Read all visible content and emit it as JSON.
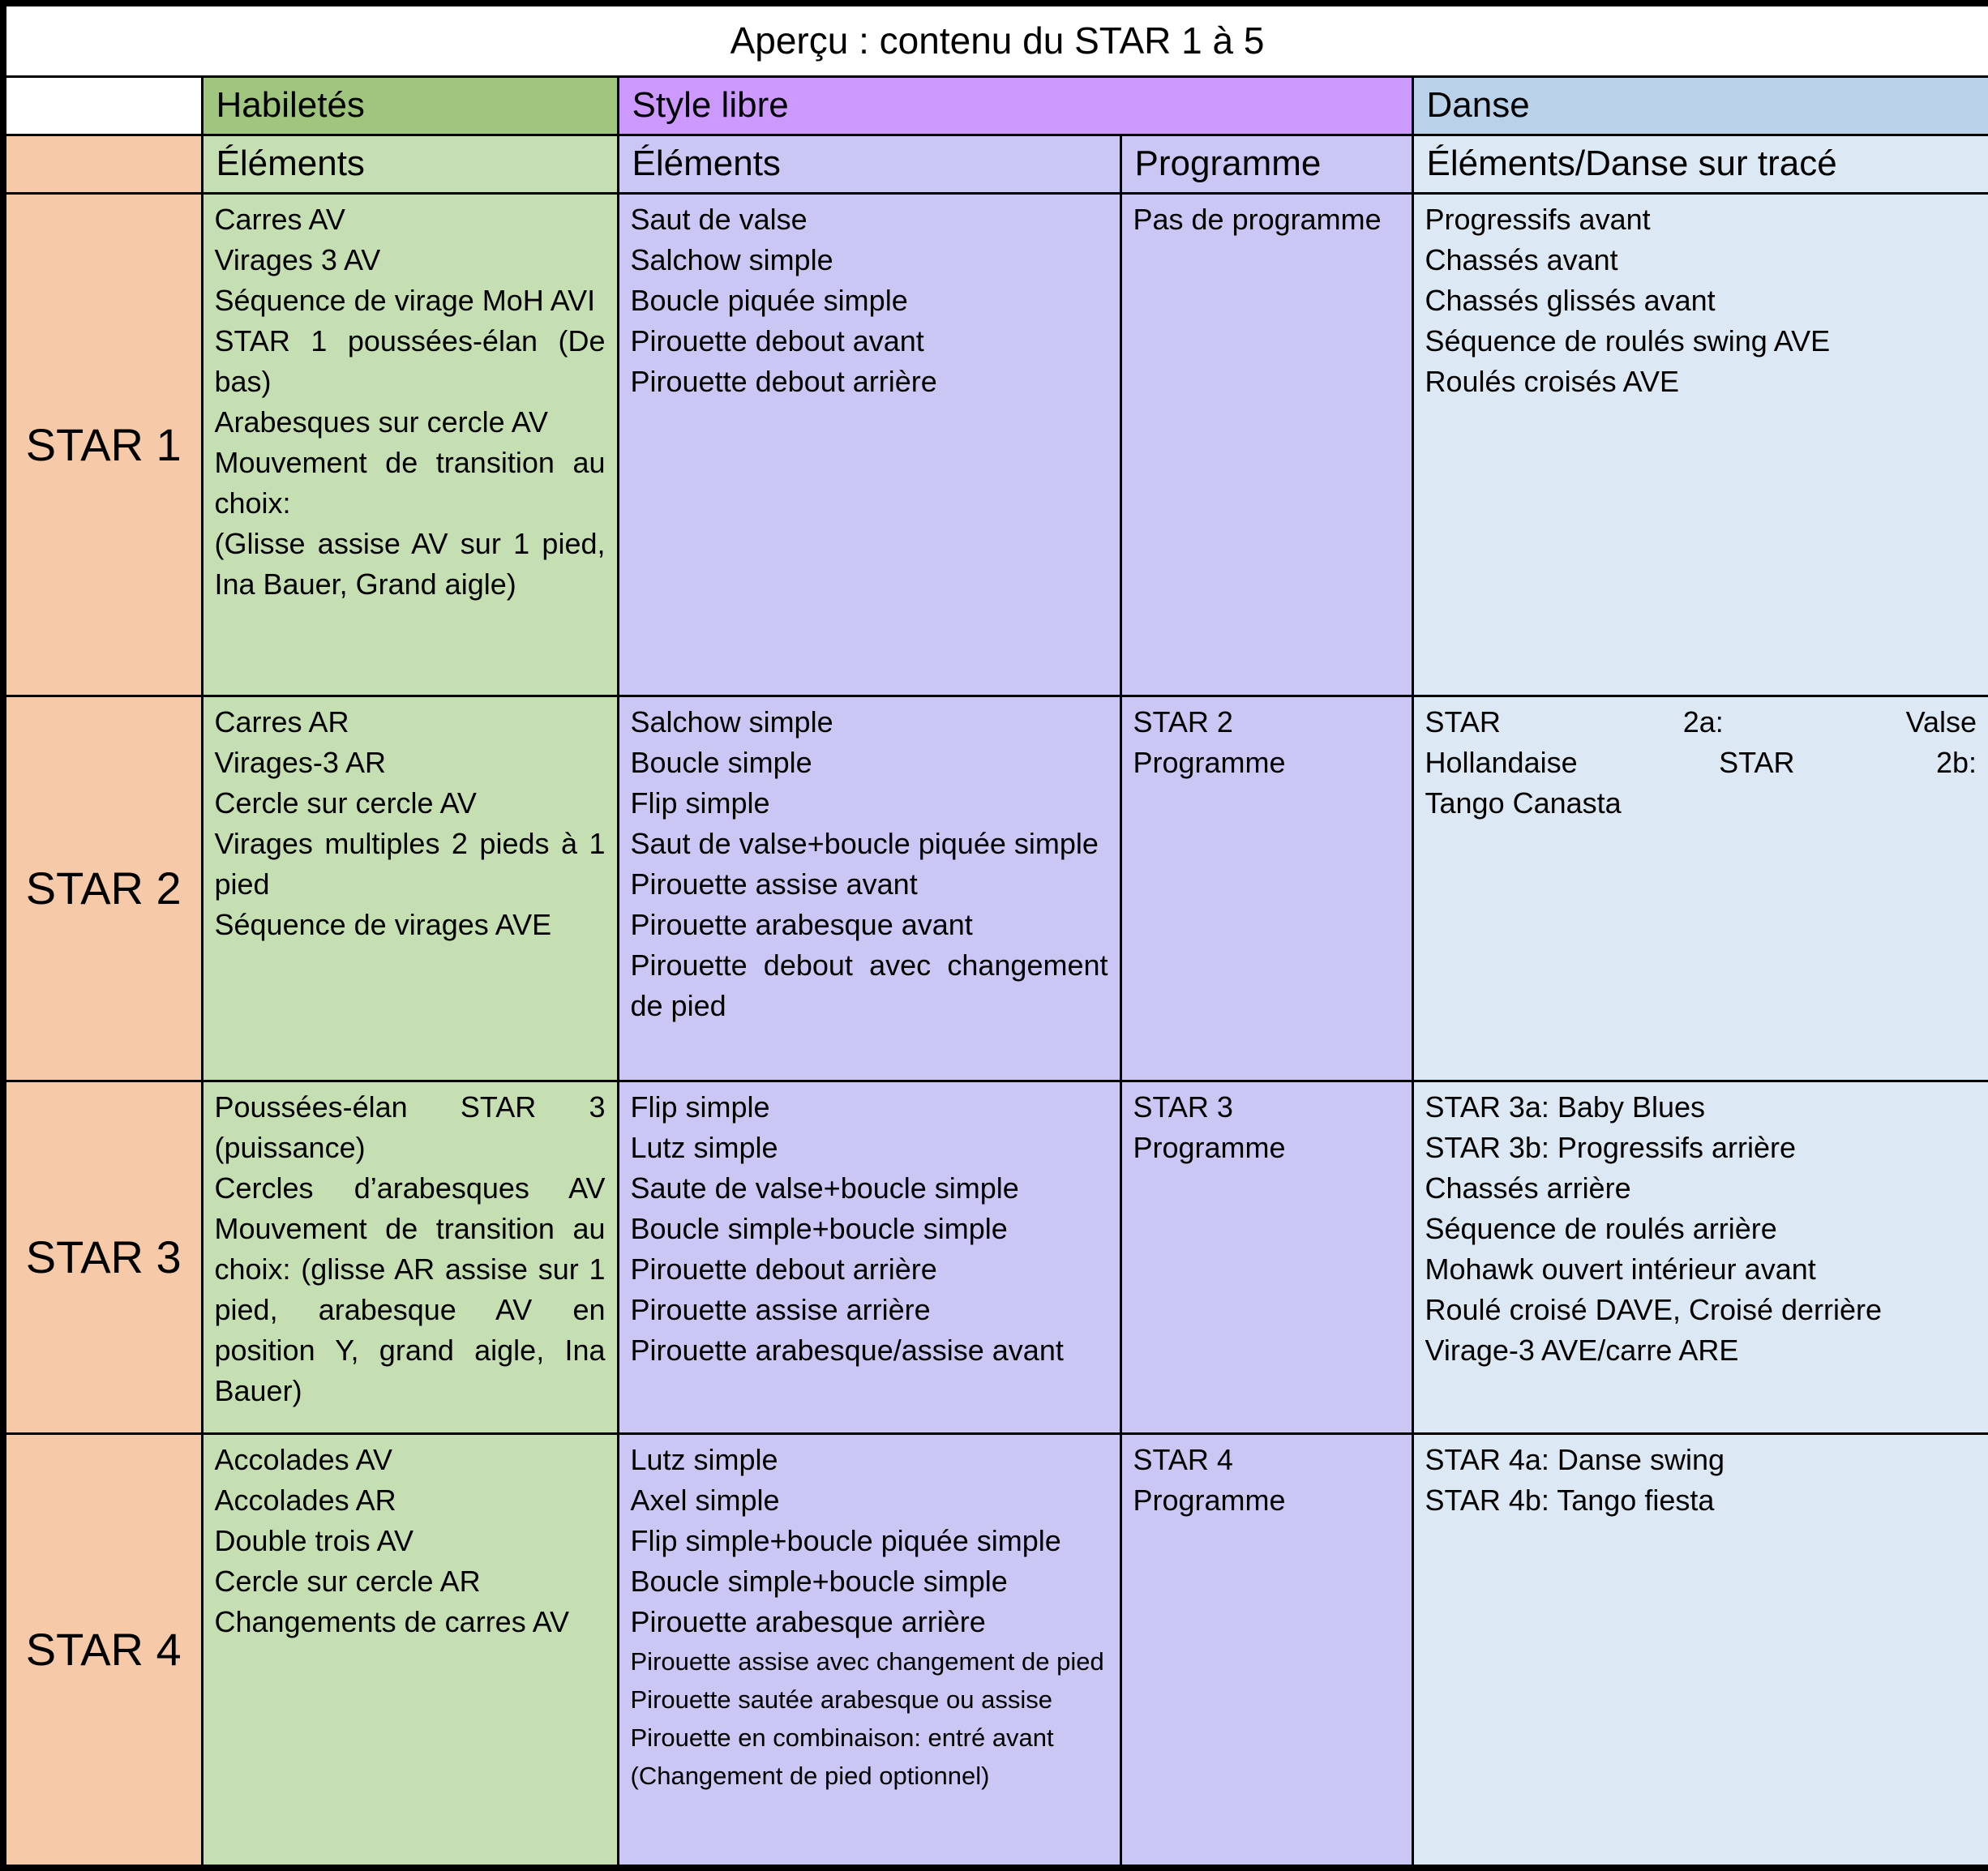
{
  "title": "Aperçu : contenu du STAR 1 à 5",
  "columns": {
    "skills": "Habiletés",
    "freestyle": "Style libre",
    "dance": "Danse"
  },
  "subheaders": {
    "skills_elements": "Éléments",
    "freestyle_elements": "Éléments",
    "freestyle_program": "Programme",
    "dance_elements": "Éléments/Danse sur tracé"
  },
  "colors": {
    "label_bg": "#F6C9A8",
    "skills_header_bg": "#A0C57E",
    "skills_bg": "#C5DFB3",
    "freestyle_header_bg": "#CC99FF",
    "freestyle_bg": "#CBC7F5",
    "dance_header_bg": "#B9D2EA",
    "dance_bg": "#DCE8F4",
    "border": "#000000",
    "title_bg": "#FFFFFF"
  },
  "rows": [
    {
      "label": "STAR 1",
      "skills": [
        "Carres AV",
        "Virages 3 AV",
        "Séquence de virage MoH AVI",
        "STAR 1 poussées-élan (De bas)",
        "Arabesques sur cercle AV",
        "Mouvement de transition au choix:",
        "(Glisse assise AV sur 1 pied, Ina Bauer, Grand aigle)"
      ],
      "freestyle": [
        "Saut de valse",
        "Salchow simple",
        "Boucle piquée simple",
        "Pirouette debout avant",
        "Pirouette debout arrière"
      ],
      "program": [
        "Pas de programme"
      ],
      "dance": [
        "Progressifs avant",
        "Chassés avant",
        "Chassés glissés avant",
        "Séquence de roulés swing AVE",
        "Roulés croisés AVE"
      ]
    },
    {
      "label": "STAR 2",
      "skills": [
        "Carres AR",
        "Virages-3 AR",
        "Cercle sur cercle AV",
        "Virages multiples 2 pieds à 1 pied",
        "Séquence de virages AVE"
      ],
      "freestyle": [
        "Salchow simple",
        "Boucle simple",
        "Flip simple",
        "Saut de valse+boucle piquée simple",
        "Pirouette assise avant",
        "Pirouette arabesque avant",
        "Pirouette debout avec changement de pied"
      ],
      "program": [
        "STAR 2",
        "Programme"
      ],
      "dance": [
        {
          "text": "STAR 2a: Valse",
          "stretch": true
        },
        {
          "text": "Hollandaise STAR 2b:",
          "stretch": true
        },
        {
          "text": "Tango Canasta"
        }
      ]
    },
    {
      "label": "STAR 3",
      "skills": [
        "Poussées-élan STAR 3 (puissance)",
        {
          "text": "Cercles d’arabesques AV",
          "stretch": true
        },
        "Mouvement de transition au choix: (glisse AR assise sur 1 pied, arabesque AV en position Y, grand aigle, Ina Bauer)"
      ],
      "freestyle": [
        "Flip simple",
        "Lutz simple",
        "Saute de valse+boucle simple",
        "Boucle simple+boucle simple",
        "Pirouette debout arrière",
        "Pirouette assise arrière",
        "Pirouette arabesque/assise avant"
      ],
      "program": [
        "STAR 3",
        "Programme"
      ],
      "dance": [
        "STAR 3a: Baby Blues",
        "STAR 3b: Progressifs arrière",
        "Chassés arrière",
        "Séquence de roulés arrière",
        "Mohawk ouvert intérieur avant",
        "Roulé croisé DAVE, Croisé derrière",
        "Virage-3 AVE/carre ARE"
      ]
    },
    {
      "label": "STAR 4",
      "skills": [
        "Accolades AV",
        "Accolades AR",
        "Double trois AV",
        "Cercle sur cercle AR",
        "Changements de carres AV"
      ],
      "freestyle": [
        "Lutz simple",
        "Axel simple",
        "Flip simple+boucle piquée simple",
        "Boucle simple+boucle simple",
        "Pirouette arabesque arrière",
        {
          "text": "Pirouette assise avec changement de pied",
          "small": true
        },
        {
          "text": "Pirouette sautée arabesque ou assise",
          "small": true
        },
        {
          "text": "Pirouette en combinaison: entré avant",
          "small": true
        },
        {
          "text": "(Changement de pied optionnel)",
          "small": true
        }
      ],
      "program": [
        "STAR 4",
        "Programme"
      ],
      "dance": [
        "STAR 4a: Danse swing",
        "STAR 4b: Tango fiesta"
      ]
    }
  ]
}
